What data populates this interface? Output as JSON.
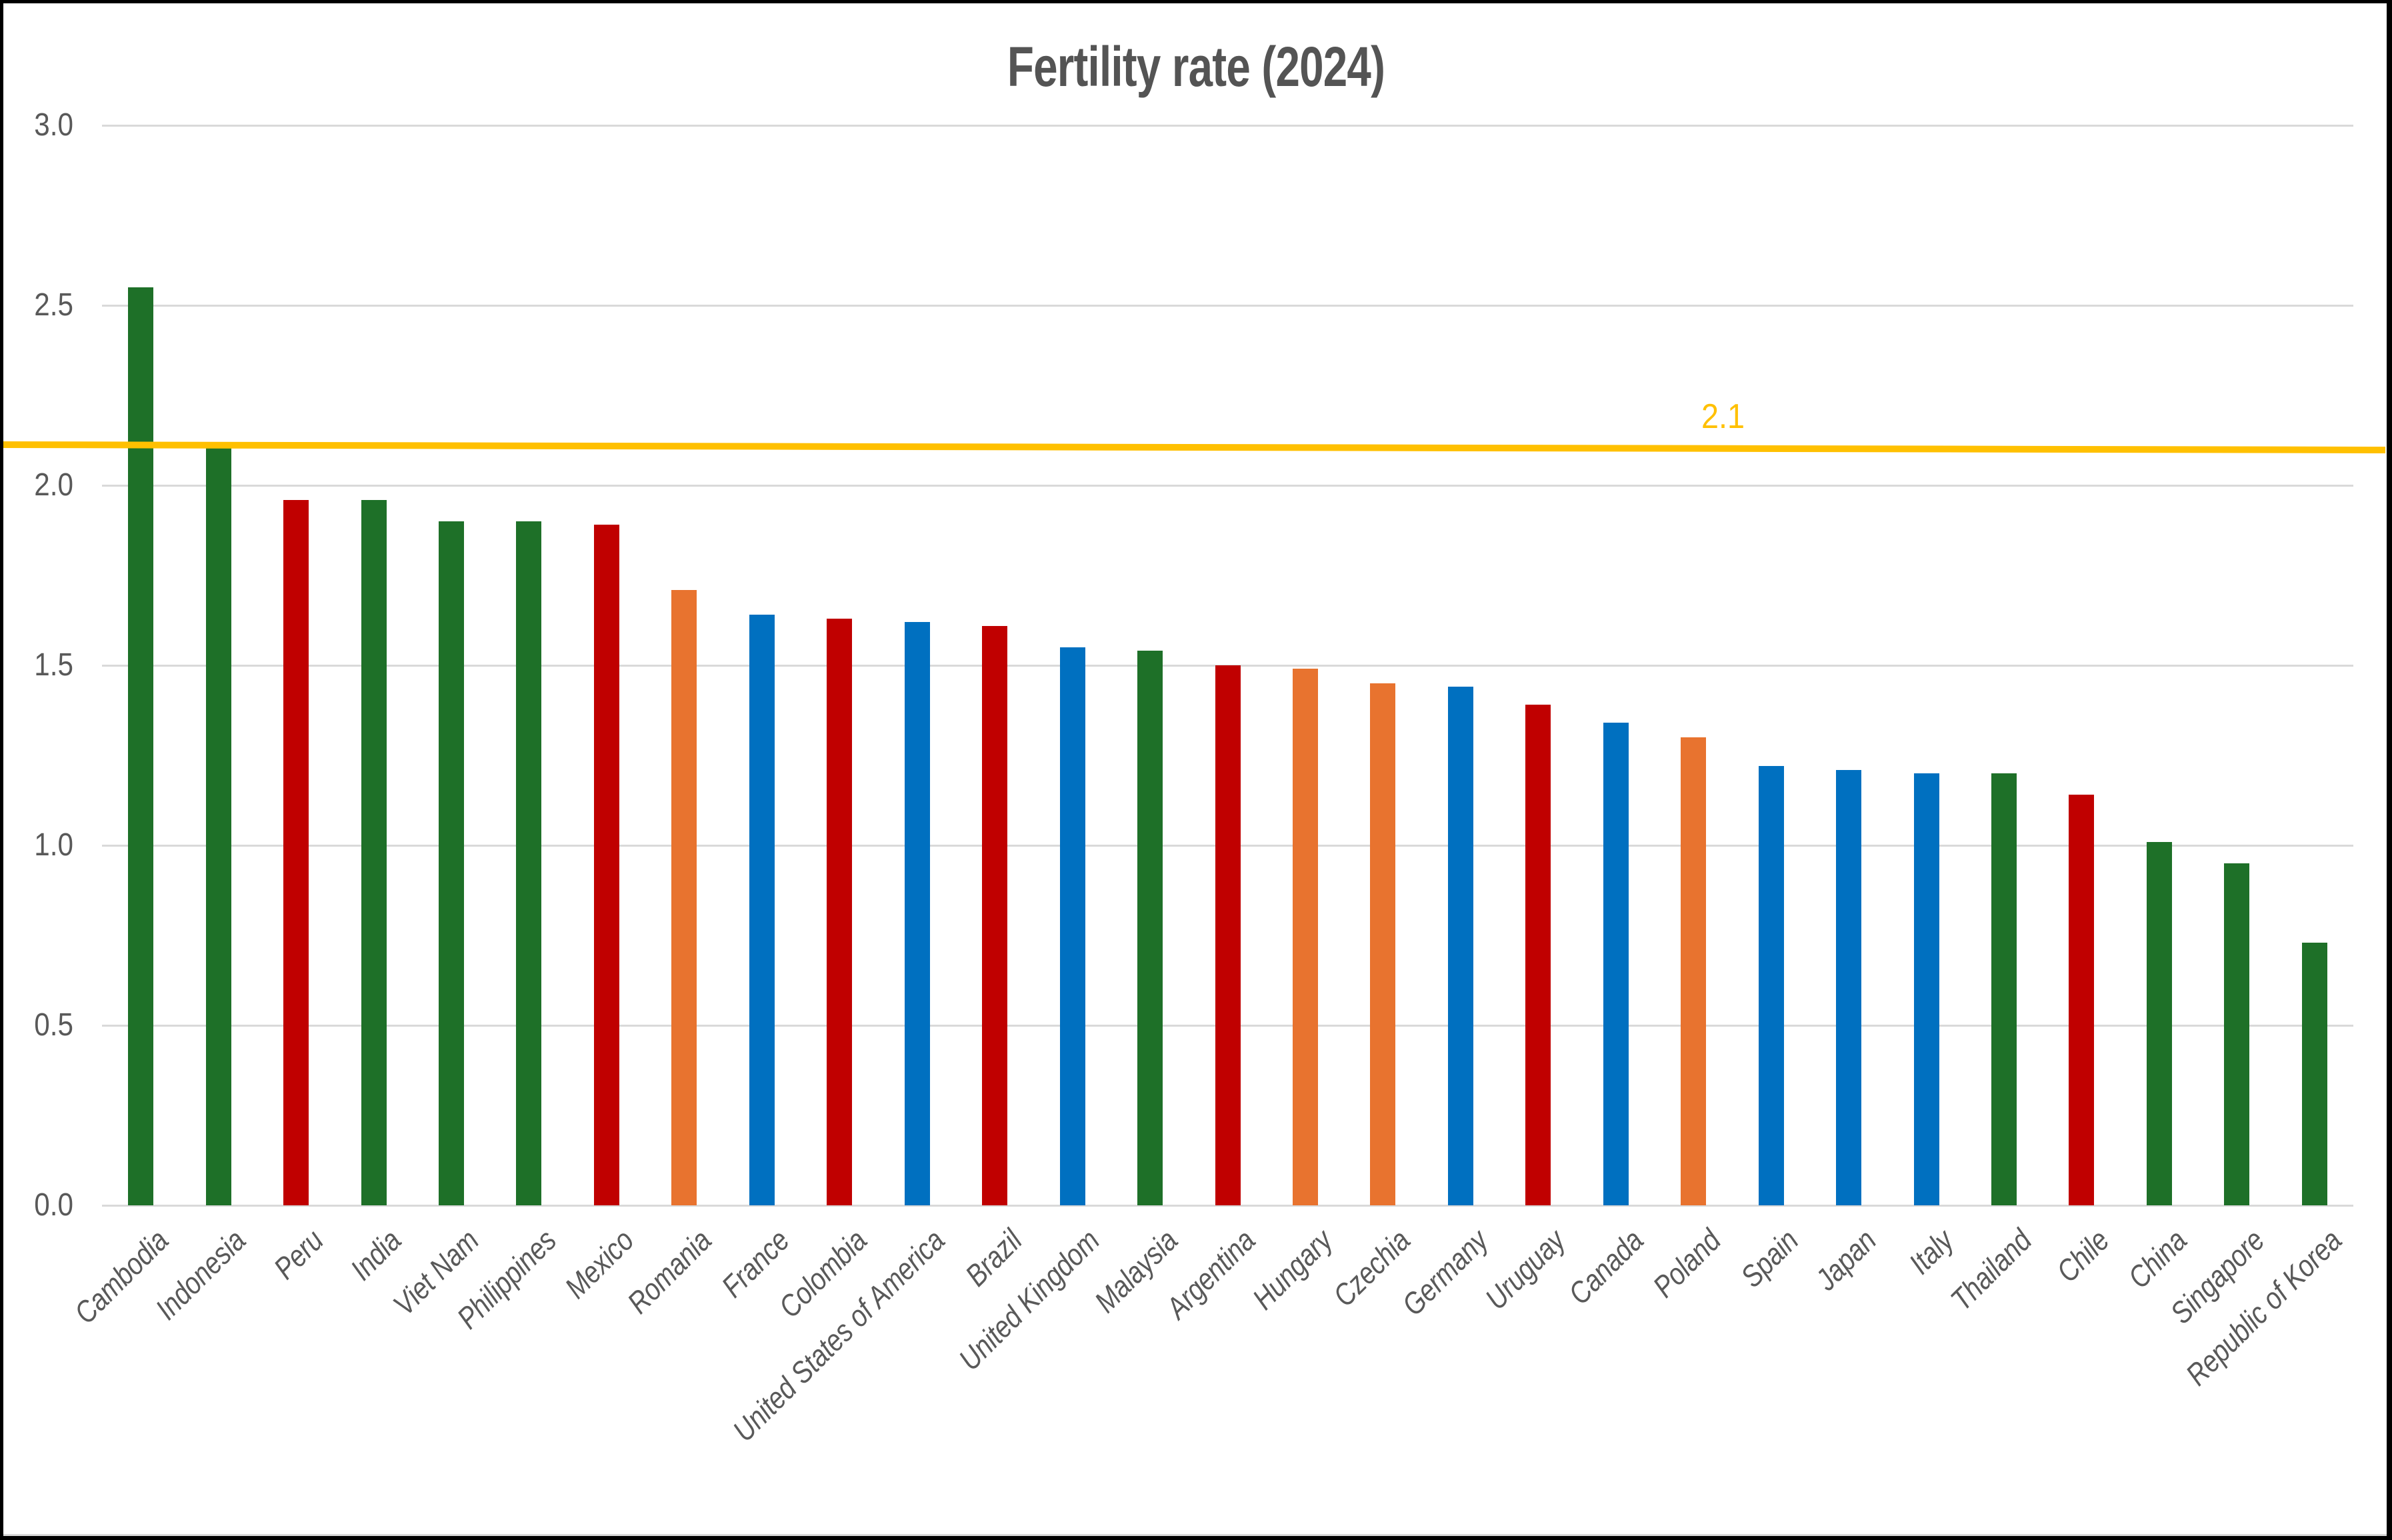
{
  "chart_data": {
    "type": "bar",
    "title": "Fertility rate (2024)",
    "categories": [
      "Cambodia",
      "Indonesia",
      "Peru",
      "India",
      "Viet Nam",
      "Philippines",
      "Mexico",
      "Romania",
      "France",
      "Colombia",
      "United States of America",
      "Brazil",
      "United Kingdom",
      "Malaysia",
      "Argentina",
      "Hungary",
      "Czechia",
      "Germany",
      "Uruguay",
      "Canada",
      "Poland",
      "Spain",
      "Japan",
      "Italy",
      "Thailand",
      "Chile",
      "China",
      "Singapore",
      "Republic of Korea"
    ],
    "values": [
      2.55,
      2.11,
      1.96,
      1.96,
      1.9,
      1.9,
      1.89,
      1.71,
      1.64,
      1.63,
      1.62,
      1.61,
      1.55,
      1.54,
      1.5,
      1.49,
      1.45,
      1.44,
      1.39,
      1.34,
      1.3,
      1.22,
      1.21,
      1.2,
      1.2,
      1.14,
      1.01,
      0.95,
      0.73
    ],
    "bar_colors": [
      "green",
      "green",
      "red",
      "green",
      "green",
      "green",
      "red",
      "orange",
      "blue",
      "red",
      "blue",
      "red",
      "blue",
      "green",
      "red",
      "orange",
      "orange",
      "blue",
      "red",
      "blue",
      "orange",
      "blue",
      "blue",
      "blue",
      "green",
      "red",
      "green",
      "green",
      "green"
    ],
    "palette": {
      "green": "#1e7028",
      "red": "#c00000",
      "blue": "#0070c0",
      "orange": "#e8732f"
    },
    "xlabel": "",
    "ylabel": "",
    "ylim": [
      0,
      3.0
    ],
    "y_axis": {
      "ticks": [
        "3.0",
        "2.5",
        "2.0",
        "1.5",
        "1.0",
        "0.5",
        "0.0"
      ],
      "gridline_color": "#d9d9d9",
      "label_color": "#595959"
    },
    "grid": true,
    "legend_position": "none",
    "reference_line": {
      "value": 2.1,
      "label": "2.1",
      "color": "#ffc000"
    },
    "title_color": "#545454",
    "xlabel_style": "italic, rotated 45deg"
  }
}
